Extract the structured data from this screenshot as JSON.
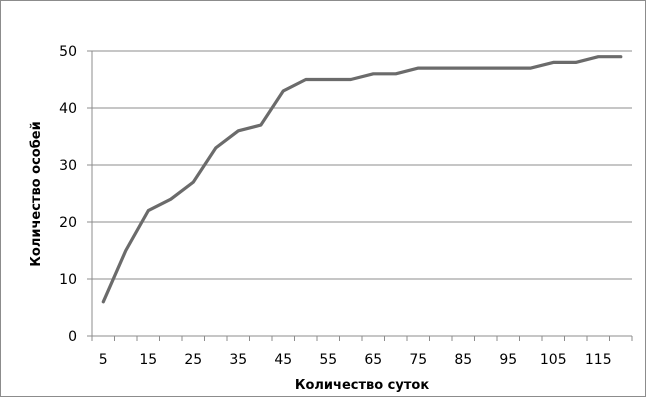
{
  "chart_data": {
    "type": "line",
    "title": "",
    "xlabel": "Количество суток",
    "ylabel": "Количество особей",
    "x": [
      5,
      10,
      15,
      20,
      25,
      30,
      35,
      40,
      45,
      50,
      55,
      60,
      65,
      70,
      75,
      80,
      85,
      90,
      95,
      100,
      105,
      110,
      115,
      120
    ],
    "series": [
      {
        "values": [
          6,
          15,
          22,
          24,
          27,
          33,
          36,
          37,
          43,
          45,
          45,
          45,
          46,
          46,
          47,
          47,
          47,
          47,
          47,
          47,
          48,
          48,
          49,
          49
        ]
      }
    ],
    "xticks": [
      "5",
      "15",
      "25",
      "35",
      "45",
      "55",
      "65",
      "75",
      "85",
      "95",
      "105",
      "115"
    ],
    "yticks": [
      "0",
      "10",
      "20",
      "30",
      "40",
      "50"
    ],
    "ylim": [
      0,
      50
    ],
    "grid": "horizontal",
    "legend": "none",
    "colors": {
      "line": "#6b6b6b",
      "grid": "#8c8c8c",
      "axis": "#8c8c8c"
    }
  }
}
